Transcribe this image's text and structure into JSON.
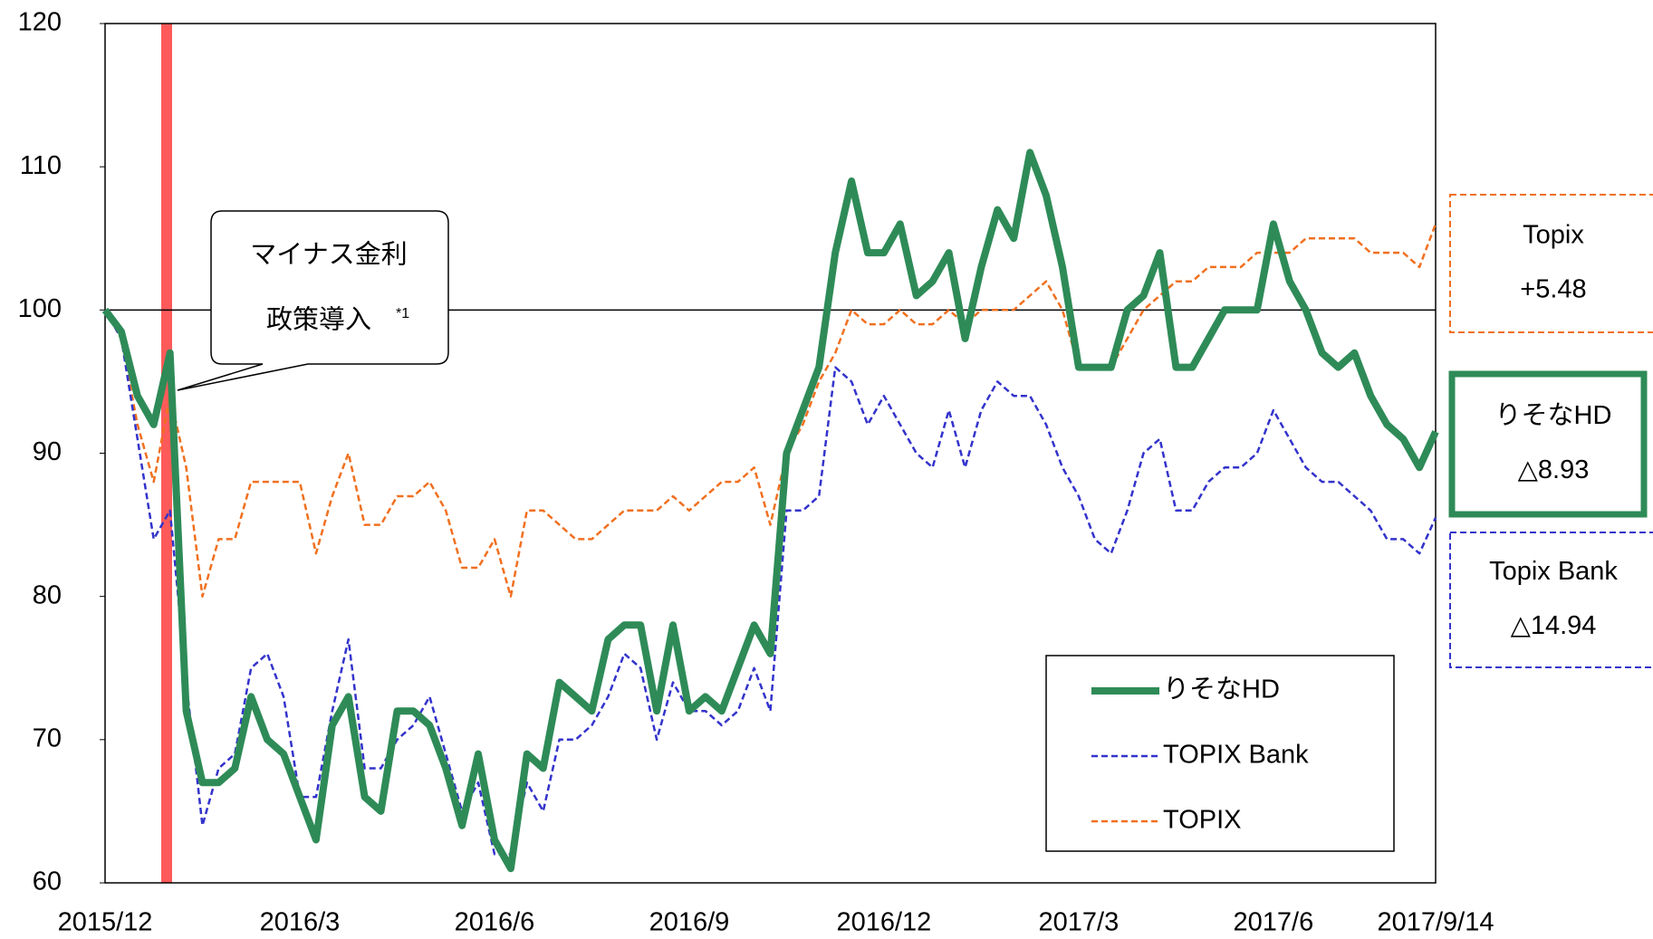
{
  "chart_data": {
    "type": "line",
    "categories": [
      "2015/12",
      null,
      null,
      null,
      null,
      null,
      null,
      null,
      null,
      null,
      null,
      null,
      "2016/3",
      null,
      null,
      null,
      null,
      null,
      null,
      null,
      null,
      null,
      null,
      null,
      "2016/6",
      null,
      null,
      null,
      null,
      null,
      null,
      null,
      null,
      null,
      null,
      null,
      "2016/9",
      null,
      null,
      null,
      null,
      null,
      null,
      null,
      null,
      null,
      null,
      null,
      "2016/12",
      null,
      null,
      null,
      null,
      null,
      null,
      null,
      null,
      null,
      null,
      null,
      "2017/3",
      null,
      null,
      null,
      null,
      null,
      null,
      null,
      null,
      null,
      null,
      null,
      "2017/6",
      null,
      null,
      null,
      null,
      null,
      null,
      null,
      null,
      null,
      "2017/9/14"
    ],
    "series": [
      {
        "name": "りそなHD",
        "color": "#2e8b57",
        "dashed": false,
        "values": [
          100,
          98.5,
          94,
          92,
          97,
          72,
          67,
          67,
          68,
          73,
          70,
          69,
          66,
          63,
          71,
          73,
          66,
          65,
          72,
          72,
          71,
          68,
          64,
          69,
          63,
          61,
          69,
          68,
          74,
          73,
          72,
          77,
          78,
          78,
          72,
          78,
          72,
          73,
          72,
          75,
          78,
          76,
          90,
          93,
          96,
          104,
          109,
          104,
          104,
          106,
          101,
          102,
          104,
          98,
          103,
          107,
          105,
          111,
          108,
          103,
          96,
          96,
          96,
          100,
          101,
          104,
          96,
          96,
          98,
          100,
          100,
          100,
          106,
          102,
          100,
          97,
          96,
          97,
          94,
          92,
          91,
          89,
          91.5
        ]
      },
      {
        "name": "TOPIX Bank",
        "color": "#3333cc",
        "dashed": true,
        "values": [
          100,
          98,
          91,
          84,
          86,
          74,
          64,
          68,
          69,
          75,
          76,
          73,
          66,
          66,
          72,
          77,
          68,
          68,
          70,
          71,
          73,
          69,
          65,
          67,
          62,
          62,
          67,
          65,
          70,
          70,
          71,
          73,
          76,
          75,
          70,
          74,
          72,
          72,
          71,
          72,
          75,
          72,
          86,
          86,
          87,
          96,
          95,
          92,
          94,
          92,
          90,
          89,
          93,
          89,
          93,
          95,
          94,
          94,
          92,
          89,
          87,
          84,
          83,
          86,
          90,
          91,
          86,
          86,
          88,
          89,
          89,
          90,
          93,
          91,
          89,
          88,
          88,
          87,
          86,
          84,
          84,
          83,
          85.5
        ]
      },
      {
        "name": "TOPIX",
        "color": "#f07020",
        "dashed": true,
        "values": [
          100,
          98,
          92,
          88,
          94,
          89,
          80,
          84,
          84,
          88,
          88,
          88,
          88,
          83,
          87,
          90,
          85,
          85,
          87,
          87,
          88,
          86,
          82,
          82,
          84,
          80,
          86,
          86,
          85,
          84,
          84,
          85,
          86,
          86,
          86,
          87,
          86,
          87,
          88,
          88,
          89,
          85,
          90,
          92,
          95,
          97,
          100,
          99,
          99,
          100,
          99,
          99,
          100,
          99,
          100,
          100,
          100,
          101,
          102,
          100,
          96,
          96,
          96,
          98,
          100,
          101,
          102,
          102,
          103,
          103,
          103,
          104,
          104,
          104,
          105,
          105,
          105,
          105,
          104,
          104,
          104,
          103,
          106
        ]
      }
    ],
    "ylim": [
      60,
      120
    ],
    "yticks": [
      60,
      70,
      80,
      90,
      100,
      110,
      120
    ],
    "reference_line": 100,
    "annotation": {
      "text": [
        "マイナス金利",
        "政策導入"
      ],
      "note": "*1"
    },
    "side_boxes": [
      {
        "title": "Topix",
        "change": "+5.48",
        "color": "#f07020",
        "dashed": true
      },
      {
        "title": "りそなHD",
        "change": "△8.93",
        "color": "#2e8b57",
        "dashed": false
      },
      {
        "title": "Topix Bank",
        "change": "△14.94",
        "color": "#3333cc",
        "dashed": true
      }
    ]
  }
}
